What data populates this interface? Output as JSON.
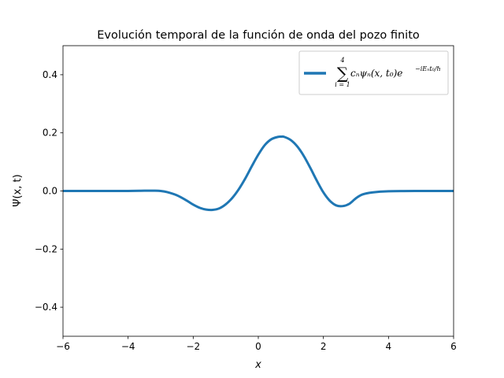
{
  "chart_data": {
    "type": "line",
    "title": "Evolución temporal de la función de onda del pozo finito",
    "xlabel": "x",
    "ylabel": "Ψ(x, t)",
    "xlim": [
      -6,
      6
    ],
    "ylim": [
      -0.5,
      0.5
    ],
    "xticks": [
      -6,
      -4,
      -2,
      0,
      2,
      4,
      6
    ],
    "yticks": [
      -0.4,
      -0.2,
      0.0,
      0.2,
      0.4
    ],
    "xtick_labels": [
      "−6",
      "−4",
      "−2",
      "0",
      "2",
      "4",
      "6"
    ],
    "ytick_labels": [
      "−0.4",
      "−0.2",
      "0.0",
      "0.2",
      "0.4"
    ],
    "grid": false,
    "legend": {
      "placement": "top-right",
      "sum_symbol": "∑",
      "upper_limit": "4",
      "lower_limit": "i = 1",
      "body": "cₙψₙ(x, t₀)e",
      "exponent": "−iEₙt₀/ℏ"
    },
    "series": [
      {
        "color": "#1f77b4",
        "x": [
          -6,
          -5,
          -4,
          -3.5,
          -3.2,
          -3.0,
          -2.8,
          -2.5,
          -2.2,
          -2.0,
          -1.8,
          -1.6,
          -1.4,
          -1.2,
          -1.0,
          -0.8,
          -0.6,
          -0.4,
          -0.2,
          0.0,
          0.2,
          0.4,
          0.6,
          0.7,
          0.8,
          1.0,
          1.2,
          1.4,
          1.6,
          1.8,
          2.0,
          2.2,
          2.4,
          2.6,
          2.8,
          3.0,
          3.2,
          3.5,
          4.0,
          5.0,
          6.0
        ],
        "y": [
          0.0,
          0.0,
          0.0,
          0.001,
          0.001,
          0.0,
          -0.004,
          -0.015,
          -0.033,
          -0.047,
          -0.058,
          -0.064,
          -0.065,
          -0.06,
          -0.046,
          -0.024,
          0.006,
          0.043,
          0.085,
          0.125,
          0.158,
          0.178,
          0.186,
          0.187,
          0.186,
          0.175,
          0.153,
          0.12,
          0.079,
          0.035,
          -0.005,
          -0.034,
          -0.05,
          -0.052,
          -0.044,
          -0.025,
          -0.012,
          -0.005,
          -0.001,
          0.0,
          0.0
        ]
      }
    ]
  }
}
